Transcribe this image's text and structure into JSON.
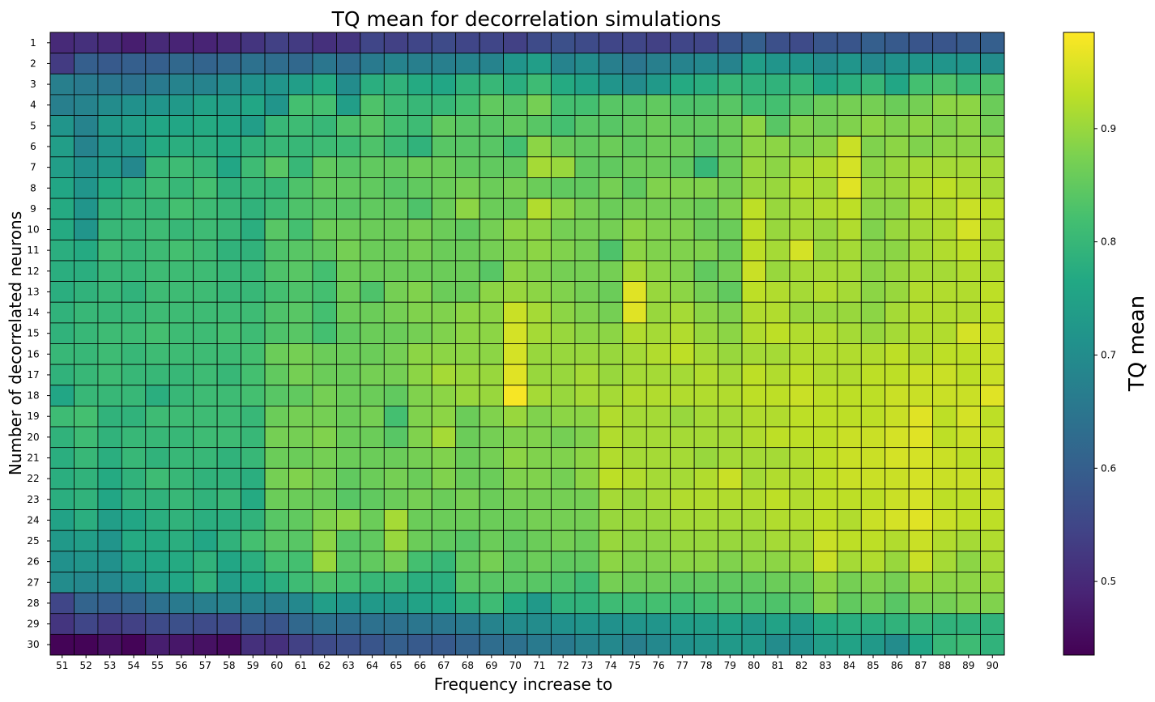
{
  "chart_data": {
    "type": "heatmap",
    "title": "TQ mean for decorrelation simulations",
    "xlabel": "Frequency increase to",
    "ylabel": "Number of decorrelated neurons",
    "x": [
      "51",
      "52",
      "53",
      "54",
      "55",
      "56",
      "57",
      "58",
      "59",
      "60",
      "61",
      "62",
      "63",
      "64",
      "65",
      "66",
      "67",
      "68",
      "69",
      "70",
      "71",
      "72",
      "73",
      "74",
      "75",
      "76",
      "77",
      "78",
      "79",
      "80",
      "81",
      "82",
      "83",
      "84",
      "85",
      "86",
      "87",
      "88",
      "89",
      "90"
    ],
    "y": [
      "1",
      "2",
      "3",
      "4",
      "5",
      "6",
      "7",
      "8",
      "9",
      "10",
      "11",
      "12",
      "13",
      "14",
      "15",
      "16",
      "17",
      "18",
      "19",
      "20",
      "21",
      "22",
      "23",
      "24",
      "25",
      "26",
      "27",
      "28",
      "29",
      "30"
    ],
    "colorscale": "viridis",
    "colorbar": {
      "label": "TQ mean",
      "range": [
        0.435,
        0.985
      ],
      "ticks": [
        "0.5",
        "0.6",
        "0.7",
        "0.8",
        "0.9"
      ]
    },
    "grid": false,
    "cell_edges": "#000000",
    "values": [
      [
        0.5,
        0.51,
        0.5,
        0.48,
        0.5,
        0.49,
        0.49,
        0.5,
        0.52,
        0.54,
        0.53,
        0.51,
        0.52,
        0.55,
        0.54,
        0.55,
        0.56,
        0.55,
        0.55,
        0.54,
        0.56,
        0.57,
        0.56,
        0.55,
        0.55,
        0.54,
        0.55,
        0.55,
        0.58,
        0.6,
        0.57,
        0.56,
        0.58,
        0.58,
        0.6,
        0.59,
        0.58,
        0.58,
        0.59,
        0.6
      ],
      [
        0.53,
        0.6,
        0.59,
        0.6,
        0.6,
        0.62,
        0.61,
        0.62,
        0.64,
        0.63,
        0.62,
        0.65,
        0.63,
        0.66,
        0.68,
        0.67,
        0.67,
        0.68,
        0.68,
        0.72,
        0.74,
        0.68,
        0.7,
        0.67,
        0.65,
        0.67,
        0.68,
        0.69,
        0.68,
        0.74,
        0.72,
        0.72,
        0.7,
        0.72,
        0.69,
        0.71,
        0.72,
        0.72,
        0.72,
        0.7
      ],
      [
        0.67,
        0.66,
        0.65,
        0.64,
        0.66,
        0.68,
        0.68,
        0.7,
        0.71,
        0.72,
        0.74,
        0.77,
        0.7,
        0.78,
        0.79,
        0.77,
        0.76,
        0.79,
        0.8,
        0.78,
        0.81,
        0.77,
        0.75,
        0.72,
        0.7,
        0.73,
        0.77,
        0.78,
        0.8,
        0.79,
        0.79,
        0.8,
        0.76,
        0.78,
        0.8,
        0.76,
        0.82,
        0.83,
        0.81,
        0.83
      ],
      [
        0.67,
        0.68,
        0.7,
        0.71,
        0.72,
        0.73,
        0.75,
        0.74,
        0.76,
        0.72,
        0.82,
        0.82,
        0.74,
        0.83,
        0.81,
        0.8,
        0.8,
        0.82,
        0.85,
        0.84,
        0.87,
        0.82,
        0.82,
        0.84,
        0.84,
        0.85,
        0.83,
        0.83,
        0.84,
        0.82,
        0.82,
        0.84,
        0.86,
        0.87,
        0.87,
        0.86,
        0.87,
        0.89,
        0.89,
        0.86
      ],
      [
        0.72,
        0.68,
        0.73,
        0.74,
        0.76,
        0.76,
        0.77,
        0.76,
        0.74,
        0.8,
        0.81,
        0.8,
        0.83,
        0.84,
        0.82,
        0.81,
        0.85,
        0.84,
        0.84,
        0.85,
        0.84,
        0.82,
        0.84,
        0.84,
        0.85,
        0.86,
        0.85,
        0.85,
        0.86,
        0.89,
        0.84,
        0.88,
        0.87,
        0.88,
        0.89,
        0.88,
        0.89,
        0.88,
        0.89,
        0.87
      ],
      [
        0.74,
        0.68,
        0.72,
        0.73,
        0.77,
        0.78,
        0.78,
        0.77,
        0.79,
        0.8,
        0.8,
        0.81,
        0.81,
        0.83,
        0.81,
        0.79,
        0.84,
        0.84,
        0.84,
        0.82,
        0.89,
        0.86,
        0.85,
        0.86,
        0.85,
        0.86,
        0.86,
        0.84,
        0.86,
        0.89,
        0.89,
        0.88,
        0.89,
        0.94,
        0.88,
        0.89,
        0.88,
        0.89,
        0.89,
        0.89
      ],
      [
        0.74,
        0.71,
        0.73,
        0.69,
        0.8,
        0.81,
        0.8,
        0.76,
        0.81,
        0.84,
        0.8,
        0.85,
        0.84,
        0.85,
        0.85,
        0.86,
        0.86,
        0.85,
        0.85,
        0.85,
        0.91,
        0.9,
        0.85,
        0.85,
        0.86,
        0.86,
        0.85,
        0.8,
        0.86,
        0.9,
        0.89,
        0.91,
        0.92,
        0.95,
        0.89,
        0.9,
        0.91,
        0.91,
        0.91,
        0.91
      ],
      [
        0.76,
        0.72,
        0.77,
        0.79,
        0.81,
        0.8,
        0.82,
        0.79,
        0.8,
        0.8,
        0.83,
        0.85,
        0.85,
        0.85,
        0.84,
        0.85,
        0.86,
        0.87,
        0.86,
        0.87,
        0.86,
        0.85,
        0.85,
        0.87,
        0.85,
        0.88,
        0.88,
        0.88,
        0.87,
        0.9,
        0.9,
        0.92,
        0.91,
        0.96,
        0.9,
        0.9,
        0.92,
        0.93,
        0.92,
        0.91
      ],
      [
        0.77,
        0.72,
        0.79,
        0.8,
        0.8,
        0.82,
        0.81,
        0.8,
        0.79,
        0.81,
        0.83,
        0.84,
        0.84,
        0.85,
        0.85,
        0.83,
        0.86,
        0.89,
        0.86,
        0.86,
        0.92,
        0.89,
        0.87,
        0.86,
        0.87,
        0.87,
        0.87,
        0.86,
        0.88,
        0.93,
        0.9,
        0.91,
        0.92,
        0.93,
        0.89,
        0.89,
        0.92,
        0.92,
        0.94,
        0.93
      ],
      [
        0.77,
        0.72,
        0.8,
        0.8,
        0.81,
        0.8,
        0.81,
        0.8,
        0.78,
        0.84,
        0.82,
        0.86,
        0.86,
        0.86,
        0.86,
        0.87,
        0.86,
        0.85,
        0.87,
        0.89,
        0.89,
        0.87,
        0.87,
        0.87,
        0.89,
        0.88,
        0.88,
        0.86,
        0.86,
        0.93,
        0.9,
        0.91,
        0.9,
        0.92,
        0.88,
        0.9,
        0.91,
        0.92,
        0.95,
        0.92
      ],
      [
        0.78,
        0.77,
        0.81,
        0.8,
        0.81,
        0.82,
        0.81,
        0.79,
        0.79,
        0.83,
        0.84,
        0.85,
        0.87,
        0.86,
        0.86,
        0.87,
        0.86,
        0.86,
        0.87,
        0.88,
        0.89,
        0.88,
        0.87,
        0.83,
        0.89,
        0.88,
        0.88,
        0.88,
        0.86,
        0.93,
        0.91,
        0.95,
        0.9,
        0.91,
        0.89,
        0.89,
        0.91,
        0.92,
        0.93,
        0.92
      ],
      [
        0.78,
        0.78,
        0.8,
        0.8,
        0.81,
        0.81,
        0.81,
        0.8,
        0.8,
        0.83,
        0.84,
        0.82,
        0.86,
        0.86,
        0.86,
        0.86,
        0.86,
        0.86,
        0.84,
        0.89,
        0.88,
        0.87,
        0.87,
        0.87,
        0.91,
        0.89,
        0.88,
        0.85,
        0.87,
        0.94,
        0.9,
        0.91,
        0.91,
        0.91,
        0.89,
        0.9,
        0.91,
        0.91,
        0.92,
        0.92
      ],
      [
        0.78,
        0.79,
        0.8,
        0.79,
        0.81,
        0.81,
        0.81,
        0.8,
        0.8,
        0.82,
        0.83,
        0.82,
        0.86,
        0.83,
        0.87,
        0.88,
        0.86,
        0.86,
        0.89,
        0.9,
        0.89,
        0.88,
        0.87,
        0.86,
        0.96,
        0.9,
        0.89,
        0.87,
        0.85,
        0.93,
        0.92,
        0.91,
        0.92,
        0.91,
        0.89,
        0.9,
        0.92,
        0.92,
        0.92,
        0.93
      ],
      [
        0.79,
        0.8,
        0.8,
        0.8,
        0.81,
        0.81,
        0.81,
        0.81,
        0.81,
        0.83,
        0.84,
        0.82,
        0.86,
        0.86,
        0.87,
        0.88,
        0.88,
        0.89,
        0.89,
        0.94,
        0.91,
        0.89,
        0.88,
        0.87,
        0.96,
        0.9,
        0.91,
        0.89,
        0.88,
        0.92,
        0.92,
        0.9,
        0.9,
        0.9,
        0.89,
        0.91,
        0.92,
        0.92,
        0.92,
        0.93
      ],
      [
        0.79,
        0.8,
        0.81,
        0.81,
        0.82,
        0.81,
        0.81,
        0.82,
        0.81,
        0.83,
        0.84,
        0.82,
        0.85,
        0.86,
        0.86,
        0.87,
        0.88,
        0.89,
        0.89,
        0.95,
        0.91,
        0.9,
        0.89,
        0.89,
        0.92,
        0.91,
        0.92,
        0.9,
        0.89,
        0.92,
        0.93,
        0.92,
        0.92,
        0.91,
        0.9,
        0.91,
        0.92,
        0.92,
        0.95,
        0.94
      ],
      [
        0.8,
        0.8,
        0.81,
        0.8,
        0.81,
        0.81,
        0.81,
        0.81,
        0.82,
        0.86,
        0.87,
        0.86,
        0.86,
        0.86,
        0.87,
        0.89,
        0.89,
        0.89,
        0.89,
        0.95,
        0.9,
        0.9,
        0.9,
        0.9,
        0.91,
        0.92,
        0.93,
        0.91,
        0.9,
        0.91,
        0.91,
        0.92,
        0.92,
        0.92,
        0.92,
        0.93,
        0.92,
        0.93,
        0.93,
        0.94
      ],
      [
        0.79,
        0.8,
        0.81,
        0.8,
        0.8,
        0.8,
        0.81,
        0.8,
        0.82,
        0.85,
        0.87,
        0.86,
        0.86,
        0.87,
        0.87,
        0.89,
        0.91,
        0.9,
        0.9,
        0.96,
        0.9,
        0.9,
        0.91,
        0.9,
        0.91,
        0.91,
        0.91,
        0.92,
        0.91,
        0.93,
        0.92,
        0.93,
        0.92,
        0.92,
        0.93,
        0.93,
        0.94,
        0.94,
        0.93,
        0.94
      ],
      [
        0.76,
        0.8,
        0.8,
        0.8,
        0.78,
        0.8,
        0.81,
        0.81,
        0.82,
        0.84,
        0.85,
        0.87,
        0.86,
        0.86,
        0.85,
        0.88,
        0.89,
        0.9,
        0.9,
        0.98,
        0.91,
        0.9,
        0.91,
        0.91,
        0.92,
        0.92,
        0.92,
        0.92,
        0.92,
        0.93,
        0.93,
        0.94,
        0.93,
        0.93,
        0.93,
        0.94,
        0.94,
        0.94,
        0.94,
        0.96
      ],
      [
        0.81,
        0.82,
        0.79,
        0.79,
        0.81,
        0.81,
        0.81,
        0.81,
        0.8,
        0.86,
        0.87,
        0.87,
        0.86,
        0.87,
        0.82,
        0.88,
        0.89,
        0.86,
        0.88,
        0.9,
        0.88,
        0.89,
        0.89,
        0.92,
        0.91,
        0.91,
        0.9,
        0.91,
        0.91,
        0.92,
        0.92,
        0.93,
        0.93,
        0.93,
        0.93,
        0.94,
        0.96,
        0.93,
        0.95,
        0.93
      ],
      [
        0.79,
        0.81,
        0.79,
        0.8,
        0.8,
        0.8,
        0.81,
        0.81,
        0.8,
        0.87,
        0.87,
        0.88,
        0.86,
        0.86,
        0.84,
        0.88,
        0.91,
        0.86,
        0.87,
        0.88,
        0.88,
        0.87,
        0.88,
        0.92,
        0.91,
        0.91,
        0.91,
        0.91,
        0.91,
        0.92,
        0.93,
        0.93,
        0.93,
        0.94,
        0.94,
        0.95,
        0.96,
        0.93,
        0.94,
        0.94
      ],
      [
        0.78,
        0.8,
        0.78,
        0.8,
        0.79,
        0.8,
        0.8,
        0.79,
        0.8,
        0.86,
        0.86,
        0.87,
        0.86,
        0.86,
        0.86,
        0.87,
        0.88,
        0.86,
        0.87,
        0.89,
        0.88,
        0.88,
        0.89,
        0.92,
        0.91,
        0.91,
        0.91,
        0.9,
        0.91,
        0.91,
        0.91,
        0.92,
        0.93,
        0.94,
        0.94,
        0.95,
        0.95,
        0.94,
        0.93,
        0.93
      ],
      [
        0.78,
        0.79,
        0.77,
        0.79,
        0.81,
        0.8,
        0.79,
        0.79,
        0.78,
        0.87,
        0.88,
        0.87,
        0.85,
        0.86,
        0.87,
        0.86,
        0.88,
        0.86,
        0.86,
        0.88,
        0.88,
        0.87,
        0.89,
        0.93,
        0.92,
        0.91,
        0.91,
        0.92,
        0.94,
        0.91,
        0.92,
        0.92,
        0.93,
        0.94,
        0.94,
        0.94,
        0.95,
        0.94,
        0.94,
        0.94
      ],
      [
        0.78,
        0.79,
        0.76,
        0.79,
        0.79,
        0.8,
        0.79,
        0.8,
        0.77,
        0.86,
        0.86,
        0.86,
        0.84,
        0.85,
        0.86,
        0.87,
        0.86,
        0.87,
        0.86,
        0.87,
        0.87,
        0.87,
        0.87,
        0.91,
        0.9,
        0.91,
        0.92,
        0.92,
        0.92,
        0.92,
        0.93,
        0.92,
        0.93,
        0.93,
        0.93,
        0.94,
        0.95,
        0.93,
        0.93,
        0.94
      ],
      [
        0.75,
        0.78,
        0.74,
        0.76,
        0.78,
        0.79,
        0.78,
        0.78,
        0.79,
        0.84,
        0.85,
        0.88,
        0.89,
        0.86,
        0.91,
        0.86,
        0.86,
        0.86,
        0.86,
        0.86,
        0.87,
        0.87,
        0.87,
        0.9,
        0.9,
        0.9,
        0.91,
        0.91,
        0.91,
        0.91,
        0.92,
        0.92,
        0.93,
        0.92,
        0.94,
        0.95,
        0.96,
        0.94,
        0.93,
        0.93
      ],
      [
        0.73,
        0.74,
        0.72,
        0.77,
        0.77,
        0.78,
        0.76,
        0.79,
        0.82,
        0.84,
        0.84,
        0.89,
        0.84,
        0.85,
        0.9,
        0.86,
        0.85,
        0.84,
        0.86,
        0.85,
        0.86,
        0.87,
        0.86,
        0.9,
        0.89,
        0.89,
        0.9,
        0.9,
        0.9,
        0.9,
        0.91,
        0.91,
        0.94,
        0.93,
        0.93,
        0.92,
        0.94,
        0.92,
        0.91,
        0.92
      ],
      [
        0.71,
        0.72,
        0.71,
        0.75,
        0.76,
        0.77,
        0.79,
        0.76,
        0.78,
        0.82,
        0.82,
        0.9,
        0.84,
        0.85,
        0.87,
        0.82,
        0.8,
        0.85,
        0.87,
        0.85,
        0.86,
        0.85,
        0.85,
        0.89,
        0.88,
        0.88,
        0.89,
        0.89,
        0.88,
        0.89,
        0.89,
        0.9,
        0.94,
        0.91,
        0.92,
        0.9,
        0.94,
        0.91,
        0.89,
        0.91
      ],
      [
        0.7,
        0.69,
        0.69,
        0.71,
        0.74,
        0.76,
        0.79,
        0.74,
        0.76,
        0.78,
        0.81,
        0.83,
        0.82,
        0.8,
        0.8,
        0.78,
        0.78,
        0.84,
        0.84,
        0.84,
        0.84,
        0.83,
        0.81,
        0.87,
        0.86,
        0.86,
        0.85,
        0.85,
        0.85,
        0.85,
        0.86,
        0.86,
        0.89,
        0.87,
        0.88,
        0.87,
        0.9,
        0.89,
        0.89,
        0.9
      ],
      [
        0.55,
        0.61,
        0.6,
        0.61,
        0.64,
        0.66,
        0.67,
        0.68,
        0.68,
        0.67,
        0.69,
        0.74,
        0.72,
        0.73,
        0.73,
        0.75,
        0.76,
        0.79,
        0.81,
        0.77,
        0.73,
        0.79,
        0.79,
        0.81,
        0.81,
        0.82,
        0.81,
        0.82,
        0.83,
        0.83,
        0.83,
        0.84,
        0.88,
        0.85,
        0.86,
        0.84,
        0.87,
        0.87,
        0.88,
        0.88
      ],
      [
        0.52,
        0.55,
        0.53,
        0.54,
        0.56,
        0.57,
        0.56,
        0.56,
        0.59,
        0.58,
        0.62,
        0.64,
        0.63,
        0.64,
        0.64,
        0.65,
        0.65,
        0.66,
        0.68,
        0.7,
        0.7,
        0.71,
        0.72,
        0.71,
        0.72,
        0.72,
        0.74,
        0.74,
        0.75,
        0.73,
        0.75,
        0.73,
        0.77,
        0.78,
        0.78,
        0.79,
        0.8,
        0.79,
        0.79,
        0.79
      ],
      [
        0.44,
        0.44,
        0.46,
        0.44,
        0.48,
        0.47,
        0.46,
        0.45,
        0.51,
        0.51,
        0.54,
        0.56,
        0.57,
        0.58,
        0.6,
        0.59,
        0.59,
        0.61,
        0.63,
        0.64,
        0.66,
        0.66,
        0.68,
        0.69,
        0.67,
        0.69,
        0.71,
        0.72,
        0.73,
        0.73,
        0.7,
        0.71,
        0.74,
        0.75,
        0.73,
        0.7,
        0.76,
        0.8,
        0.81,
        0.79
      ]
    ]
  }
}
